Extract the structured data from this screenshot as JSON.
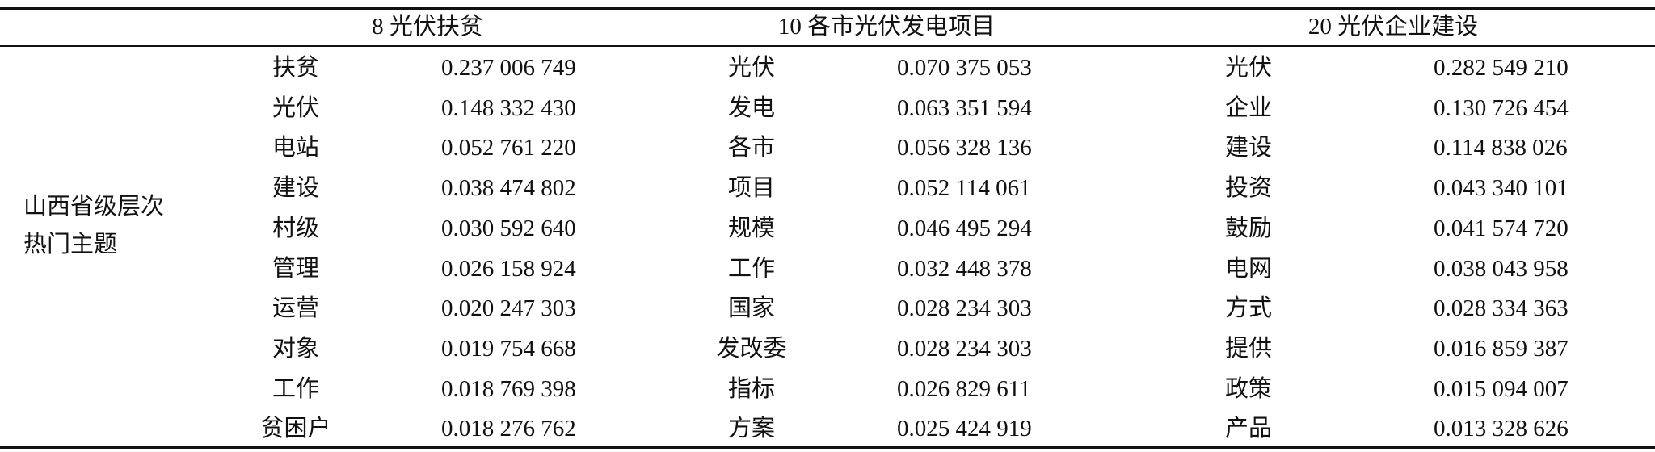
{
  "table": {
    "header": [
      "8 光伏扶贫",
      "10 各市光伏发电项目",
      "20 光伏企业建设"
    ],
    "row_label": [
      "山西省级层次",
      "热门主题"
    ],
    "rows": [
      [
        "扶贫",
        "0.237 006 749",
        "光伏",
        "0.070 375 053",
        "光伏",
        "0.282 549 210"
      ],
      [
        "光伏",
        "0.148 332 430",
        "发电",
        "0.063 351 594",
        "企业",
        "0.130 726 454"
      ],
      [
        "电站",
        "0.052 761 220",
        "各市",
        "0.056 328 136",
        "建设",
        "0.114 838 026"
      ],
      [
        "建设",
        "0.038 474 802",
        "项目",
        "0.052 114 061",
        "投资",
        "0.043 340 101"
      ],
      [
        "村级",
        "0.030 592 640",
        "规模",
        "0.046 495 294",
        "鼓励",
        "0.041 574 720"
      ],
      [
        "管理",
        "0.026 158 924",
        "工作",
        "0.032 448 378",
        "电网",
        "0.038 043 958"
      ],
      [
        "运营",
        "0.020 247 303",
        "国家",
        "0.028 234 303",
        "方式",
        "0.028 334 363"
      ],
      [
        "对象",
        "0.019 754 668",
        "发改委",
        "0.028 234 303",
        "提供",
        "0.016 859 387"
      ],
      [
        "工作",
        "0.018 769 398",
        "指标",
        "0.026 829 611",
        "政策",
        "0.015 094 007"
      ],
      [
        "贫困户",
        "0.018 276 762",
        "方案",
        "0.025 424 919",
        "产品",
        "0.013 328 626"
      ]
    ]
  }
}
